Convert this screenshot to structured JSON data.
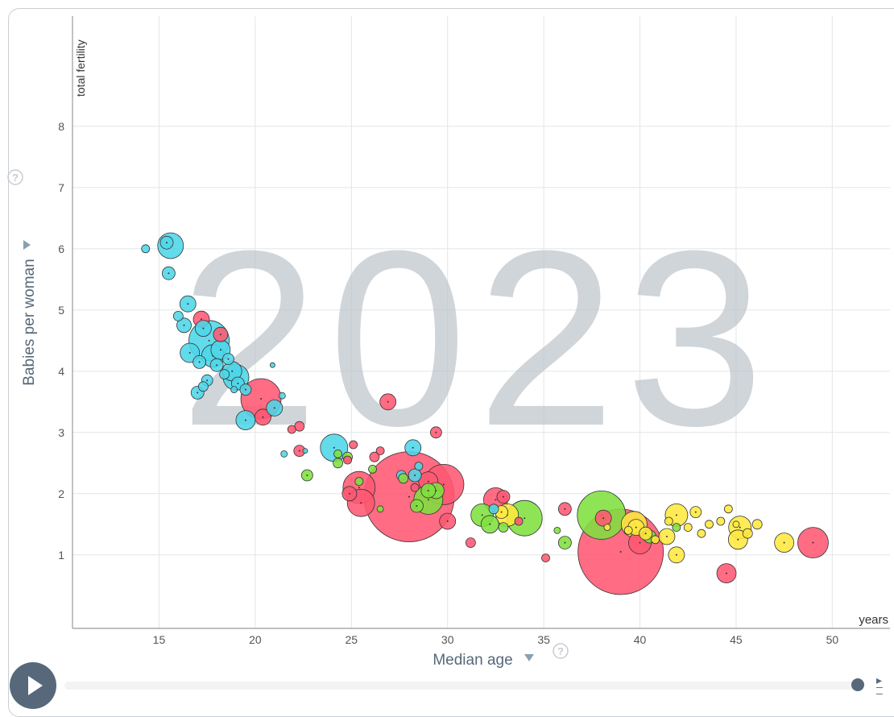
{
  "chart_data": {
    "type": "scatter",
    "year_label": "2023",
    "xlabel": "Median age",
    "xunit": "years",
    "ylabel": "Babies per woman",
    "yunit": "total fertility",
    "xlim": [
      10.5,
      53
    ],
    "ylim": [
      -0.2,
      9.8
    ],
    "x_ticks": [
      15,
      20,
      25,
      30,
      35,
      40,
      45,
      50
    ],
    "y_ticks": [
      1,
      2,
      3,
      4,
      5,
      6,
      7,
      8
    ],
    "grid": true,
    "colors": {
      "africa": "#4dd6e8",
      "asia": "#ff5872",
      "americas": "#7fe03f",
      "europe": "#ffe83f"
    },
    "points": [
      [
        39.0,
        1.05,
        53,
        "asia"
      ],
      [
        28.0,
        1.95,
        56,
        "asia"
      ],
      [
        29.8,
        2.15,
        25,
        "asia"
      ],
      [
        25.4,
        2.1,
        20,
        "asia"
      ],
      [
        25.5,
        1.85,
        17,
        "asia"
      ],
      [
        20.3,
        3.55,
        25,
        "asia"
      ],
      [
        32.5,
        1.9,
        15,
        "asia"
      ],
      [
        40.0,
        1.2,
        14,
        "asia"
      ],
      [
        49.0,
        1.2,
        19,
        "asia"
      ],
      [
        44.5,
        0.7,
        12,
        "asia"
      ],
      [
        26.9,
        3.5,
        10,
        "asia"
      ],
      [
        30.0,
        1.55,
        10,
        "asia"
      ],
      [
        20.4,
        3.25,
        10,
        "asia"
      ],
      [
        24.9,
        2.0,
        9,
        "asia"
      ],
      [
        29.0,
        2.2,
        12,
        "asia"
      ],
      [
        18.2,
        4.6,
        9,
        "asia"
      ],
      [
        17.2,
        4.85,
        10,
        "asia"
      ],
      [
        29.4,
        3.0,
        7,
        "asia"
      ],
      [
        36.1,
        1.75,
        8,
        "asia"
      ],
      [
        22.3,
        2.7,
        7,
        "asia"
      ],
      [
        21.9,
        3.05,
        5,
        "asia"
      ],
      [
        22.3,
        3.1,
        6,
        "asia"
      ],
      [
        31.2,
        1.2,
        6,
        "asia"
      ],
      [
        35.1,
        0.95,
        5,
        "asia"
      ],
      [
        25.1,
        2.8,
        5,
        "asia"
      ],
      [
        28.3,
        2.1,
        5,
        "asia"
      ],
      [
        32.9,
        1.95,
        8,
        "asia"
      ],
      [
        26.2,
        2.6,
        6,
        "asia"
      ],
      [
        26.5,
        2.7,
        5,
        "asia"
      ],
      [
        33.7,
        1.55,
        5,
        "asia"
      ],
      [
        38.1,
        1.6,
        10,
        "asia"
      ],
      [
        24.8,
        2.55,
        5,
        "asia"
      ],
      [
        15.6,
        6.05,
        16,
        "africa"
      ],
      [
        15.4,
        6.1,
        8,
        "africa"
      ],
      [
        15.5,
        5.6,
        8,
        "africa"
      ],
      [
        14.3,
        6.0,
        5,
        "africa"
      ],
      [
        16.5,
        5.1,
        10,
        "africa"
      ],
      [
        16.3,
        4.75,
        9,
        "africa"
      ],
      [
        16.0,
        4.9,
        6,
        "africa"
      ],
      [
        17.6,
        4.5,
        25,
        "africa"
      ],
      [
        17.3,
        4.7,
        10,
        "africa"
      ],
      [
        17.8,
        4.25,
        14,
        "africa"
      ],
      [
        18.2,
        4.35,
        12,
        "africa"
      ],
      [
        16.6,
        4.3,
        12,
        "africa"
      ],
      [
        17.1,
        4.15,
        8,
        "africa"
      ],
      [
        18.8,
        4.0,
        12,
        "africa"
      ],
      [
        19.0,
        3.9,
        16,
        "africa"
      ],
      [
        18.6,
        4.2,
        7,
        "africa"
      ],
      [
        18.0,
        4.1,
        8,
        "africa"
      ],
      [
        19.5,
        3.7,
        7,
        "africa"
      ],
      [
        19.1,
        3.8,
        8,
        "africa"
      ],
      [
        17.5,
        3.85,
        7,
        "africa"
      ],
      [
        17.0,
        3.65,
        8,
        "africa"
      ],
      [
        17.3,
        3.75,
        6,
        "africa"
      ],
      [
        19.5,
        3.2,
        12,
        "africa"
      ],
      [
        21.0,
        3.4,
        10,
        "africa"
      ],
      [
        18.4,
        3.95,
        6,
        "africa"
      ],
      [
        24.1,
        2.75,
        17,
        "africa"
      ],
      [
        28.2,
        2.75,
        10,
        "africa"
      ],
      [
        27.6,
        2.3,
        6,
        "africa"
      ],
      [
        28.3,
        2.3,
        8,
        "africa"
      ],
      [
        21.4,
        3.6,
        4,
        "africa"
      ],
      [
        20.9,
        4.1,
        3,
        "africa"
      ],
      [
        21.5,
        2.65,
        4,
        "africa"
      ],
      [
        22.6,
        2.7,
        3,
        "africa"
      ],
      [
        32.4,
        1.75,
        6,
        "africa"
      ],
      [
        28.5,
        2.45,
        5,
        "africa"
      ],
      [
        18.9,
        3.7,
        4,
        "africa"
      ],
      [
        29.0,
        1.9,
        18,
        "americas"
      ],
      [
        29.0,
        2.05,
        9,
        "americas"
      ],
      [
        29.4,
        2.05,
        10,
        "americas"
      ],
      [
        38.0,
        1.65,
        30,
        "americas"
      ],
      [
        34.0,
        1.6,
        22,
        "americas"
      ],
      [
        31.8,
        1.65,
        14,
        "americas"
      ],
      [
        32.2,
        1.5,
        11,
        "americas"
      ],
      [
        36.1,
        1.2,
        8,
        "americas"
      ],
      [
        28.4,
        1.8,
        8,
        "americas"
      ],
      [
        27.7,
        2.25,
        6,
        "americas"
      ],
      [
        24.8,
        2.6,
        6,
        "americas"
      ],
      [
        24.3,
        2.65,
        5,
        "americas"
      ],
      [
        24.3,
        2.5,
        6,
        "americas"
      ],
      [
        22.7,
        2.3,
        7,
        "americas"
      ],
      [
        25.4,
        2.2,
        5,
        "americas"
      ],
      [
        26.1,
        2.4,
        5,
        "americas"
      ],
      [
        26.5,
        1.75,
        4,
        "americas"
      ],
      [
        35.7,
        1.4,
        4,
        "americas"
      ],
      [
        41.9,
        1.45,
        5,
        "americas"
      ],
      [
        40.5,
        1.3,
        8,
        "americas"
      ],
      [
        32.9,
        1.45,
        6,
        "americas"
      ],
      [
        39.7,
        1.5,
        16,
        "europe"
      ],
      [
        39.8,
        1.45,
        10,
        "europe"
      ],
      [
        40.3,
        1.35,
        8,
        "europe"
      ],
      [
        41.9,
        1.65,
        14,
        "europe"
      ],
      [
        41.4,
        1.3,
        10,
        "europe"
      ],
      [
        41.9,
        1.0,
        10,
        "europe"
      ],
      [
        42.9,
        1.7,
        7,
        "europe"
      ],
      [
        45.2,
        1.45,
        14,
        "europe"
      ],
      [
        45.1,
        1.25,
        12,
        "europe"
      ],
      [
        47.5,
        1.2,
        12,
        "europe"
      ],
      [
        45.6,
        1.35,
        6,
        "europe"
      ],
      [
        46.1,
        1.5,
        6,
        "europe"
      ],
      [
        43.2,
        1.35,
        5,
        "europe"
      ],
      [
        43.6,
        1.5,
        5,
        "europe"
      ],
      [
        44.2,
        1.55,
        5,
        "europe"
      ],
      [
        44.6,
        1.75,
        5,
        "europe"
      ],
      [
        42.5,
        1.45,
        5,
        "europe"
      ],
      [
        41.5,
        1.55,
        5,
        "europe"
      ],
      [
        33.1,
        1.65,
        14,
        "europe"
      ],
      [
        32.8,
        1.7,
        8,
        "europe"
      ],
      [
        40.8,
        1.25,
        5,
        "europe"
      ],
      [
        45.0,
        1.5,
        4,
        "europe"
      ],
      [
        39.4,
        1.4,
        5,
        "europe"
      ],
      [
        38.3,
        1.45,
        4,
        "europe"
      ]
    ]
  }
}
